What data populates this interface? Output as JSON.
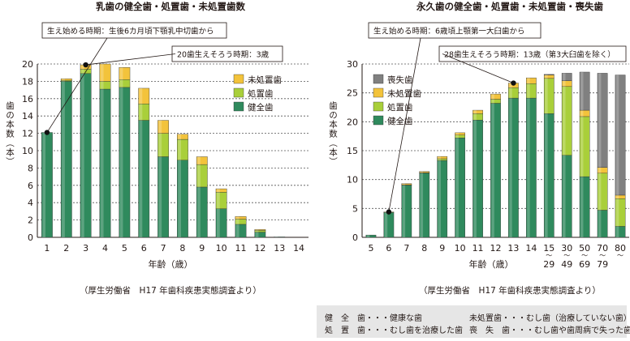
{
  "colors": {
    "healthy": "#2f8a5d",
    "treated": "#a9cf3a",
    "untreated": "#f3c33b",
    "lost": "#808080",
    "title": "#8a5a2b",
    "grid": "#555555"
  },
  "source_left": "（厚生労働省　H17 年歯科疾患実態調査より）",
  "source_right": "（厚生労働省　H17 年歯科疾患実態調査より）",
  "glossary": {
    "row1_left": "健　全　歯・・・健康な歯",
    "row1_right": "未処置歯・・・むし歯（治療していない歯）",
    "row2_left": "処　置　歯・・・むし歯を治療した歯",
    "row2_right": "喪　失　歯・・・むし歯や歯周病で失った歯"
  },
  "chart_data": [
    {
      "type": "bar",
      "stacked": true,
      "title": "乳歯の健全歯・処置歯・未処置歯数",
      "ylabel": "歯の本数（本）",
      "xlabel": "年齢（歳）",
      "categories": [
        "1",
        "2",
        "3",
        "4",
        "5",
        "6",
        "7",
        "8",
        "9",
        "10",
        "11",
        "12",
        "13",
        "14"
      ],
      "ylim": [
        0,
        20
      ],
      "yticks": [
        0,
        2,
        4,
        6,
        8,
        10,
        12,
        14,
        16,
        18,
        20
      ],
      "grid": true,
      "legend_position": "top-right",
      "series": [
        {
          "name": "健全歯",
          "color_key": "healthy",
          "values": [
            12.1,
            18.0,
            18.9,
            17.1,
            17.3,
            13.5,
            9.3,
            8.9,
            5.8,
            3.3,
            1.5,
            0.6,
            0.05,
            0
          ]
        },
        {
          "name": "処置歯",
          "color_key": "treated",
          "values": [
            0,
            0.1,
            0.5,
            0.9,
            0.9,
            1.9,
            2.7,
            2.4,
            2.6,
            1.9,
            0.6,
            0.2,
            0,
            0
          ]
        },
        {
          "name": "未処置歯",
          "color_key": "untreated",
          "values": [
            0,
            0.2,
            0.5,
            2.0,
            1.4,
            1.8,
            1.5,
            0.6,
            0.9,
            0.4,
            0.3,
            0.1,
            0,
            0
          ]
        }
      ],
      "annotations": [
        {
          "text": "生え始める時期：生後6カ月頃下顎乳中切歯から",
          "category": "1",
          "value": 12.1
        },
        {
          "text": "20歯生えそろう時期：3歳",
          "category": "3",
          "value": 19.9
        }
      ]
    },
    {
      "type": "bar",
      "stacked": true,
      "title": "永久歯の健全歯・処置歯・未処置歯・喪失歯",
      "ylabel": "歯の本数（本）",
      "xlabel": "年齢（歳）",
      "categories": [
        "5",
        "6",
        "7",
        "8",
        "9",
        "10",
        "11",
        "12",
        "13",
        "14",
        "15〜29",
        "30〜49",
        "50〜69",
        "70〜79",
        "80〜"
      ],
      "ylim": [
        0,
        30
      ],
      "yticks": [
        0,
        5,
        10,
        15,
        20,
        25,
        30
      ],
      "grid": true,
      "legend_position": "top-left",
      "series": [
        {
          "name": "健全歯",
          "color_key": "healthy",
          "values": [
            0.4,
            4.3,
            9.0,
            11.1,
            13.3,
            17.2,
            20.3,
            23.2,
            24.1,
            24.1,
            21.4,
            14.2,
            10.5,
            4.7,
            1.9
          ]
        },
        {
          "name": "処置歯",
          "color_key": "treated",
          "values": [
            0,
            0,
            0.1,
            0.1,
            0.3,
            0.5,
            1.1,
            0.7,
            1.8,
            2.5,
            6.1,
            11.9,
            10.4,
            6.4,
            4.8
          ]
        },
        {
          "name": "未処置歯",
          "color_key": "untreated",
          "values": [
            0,
            0.1,
            0.2,
            0.2,
            0.4,
            0.4,
            0.6,
            0.9,
            0.8,
            1.0,
            0.6,
            1.0,
            1.1,
            1.0,
            0.6
          ]
        },
        {
          "name": "喪失歯",
          "color_key": "lost",
          "values": [
            0,
            0,
            0,
            0,
            0,
            0,
            0,
            0,
            0,
            0,
            0.1,
            1.3,
            6.6,
            16.3,
            20.8
          ]
        }
      ],
      "annotations": [
        {
          "text": "生え始める時期：6歳頃上顎第一大臼歯から",
          "category": "6",
          "value": 4.4
        },
        {
          "text": "28歯生えそろう時期：13歳（第3大臼歯を除く）",
          "category": "13",
          "value": 26.7
        }
      ]
    }
  ]
}
